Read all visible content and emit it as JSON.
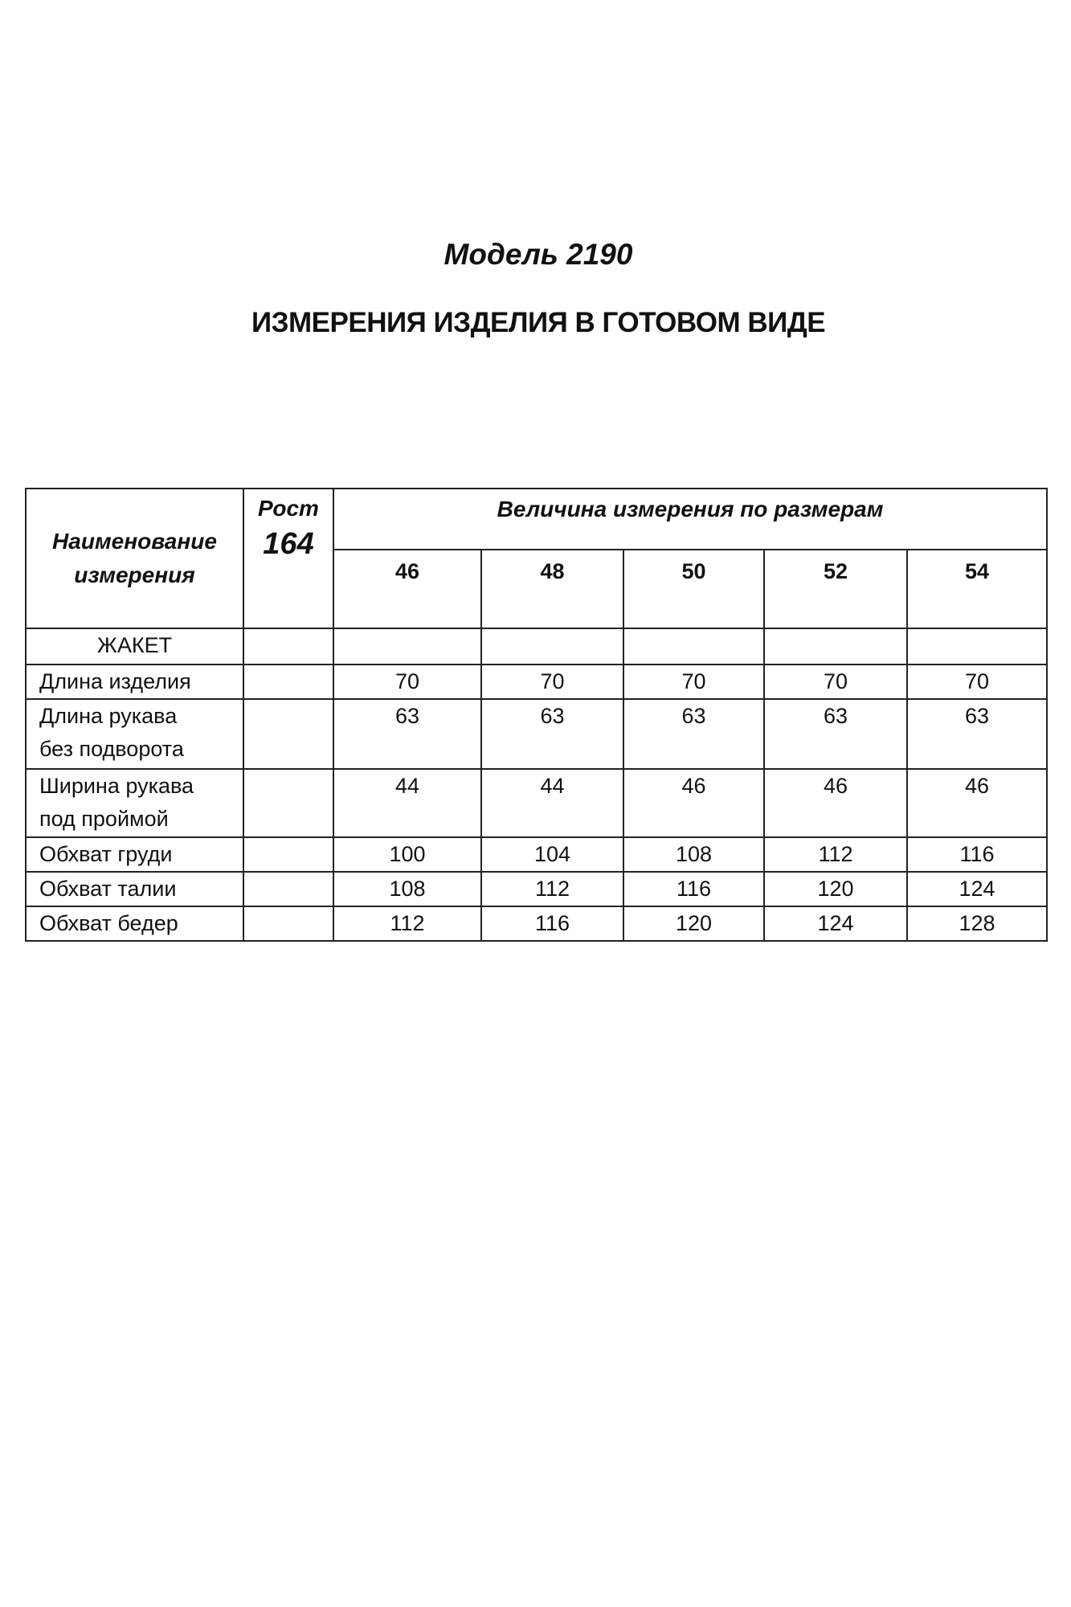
{
  "title": "Модель 2190",
  "subtitle": "ИЗМЕРЕНИЯ ИЗДЕЛИЯ В ГОТОВОМ ВИДЕ",
  "table": {
    "col_name_header_line1": "Наименование",
    "col_name_header_line2": "измерения",
    "rost_label": "Рост",
    "rost_value": "164",
    "sizes_header": "Величина измерения по размерам",
    "sizes": [
      "46",
      "48",
      "50",
      "52",
      "54"
    ],
    "section": "ЖАКЕТ",
    "rows": [
      {
        "name1": "Длина изделия",
        "name2": "",
        "values": [
          "70",
          "70",
          "70",
          "70",
          "70"
        ]
      },
      {
        "name1": "Длина рукава",
        "name2": "без подворота",
        "values": [
          "63",
          "63",
          "63",
          "63",
          "63"
        ]
      },
      {
        "name1": "Ширина рукава",
        "name2": "под проймой",
        "values": [
          "44",
          "44",
          "46",
          "46",
          "46"
        ]
      },
      {
        "name1": "Обхват груди",
        "name2": "",
        "values": [
          "100",
          "104",
          "108",
          "112",
          "116"
        ]
      },
      {
        "name1": "Обхват талии",
        "name2": "",
        "values": [
          "108",
          "112",
          "116",
          "120",
          "124"
        ]
      },
      {
        "name1": "Обхват бедер",
        "name2": "",
        "values": [
          "112",
          "116",
          "120",
          "124",
          "128"
        ]
      }
    ]
  }
}
